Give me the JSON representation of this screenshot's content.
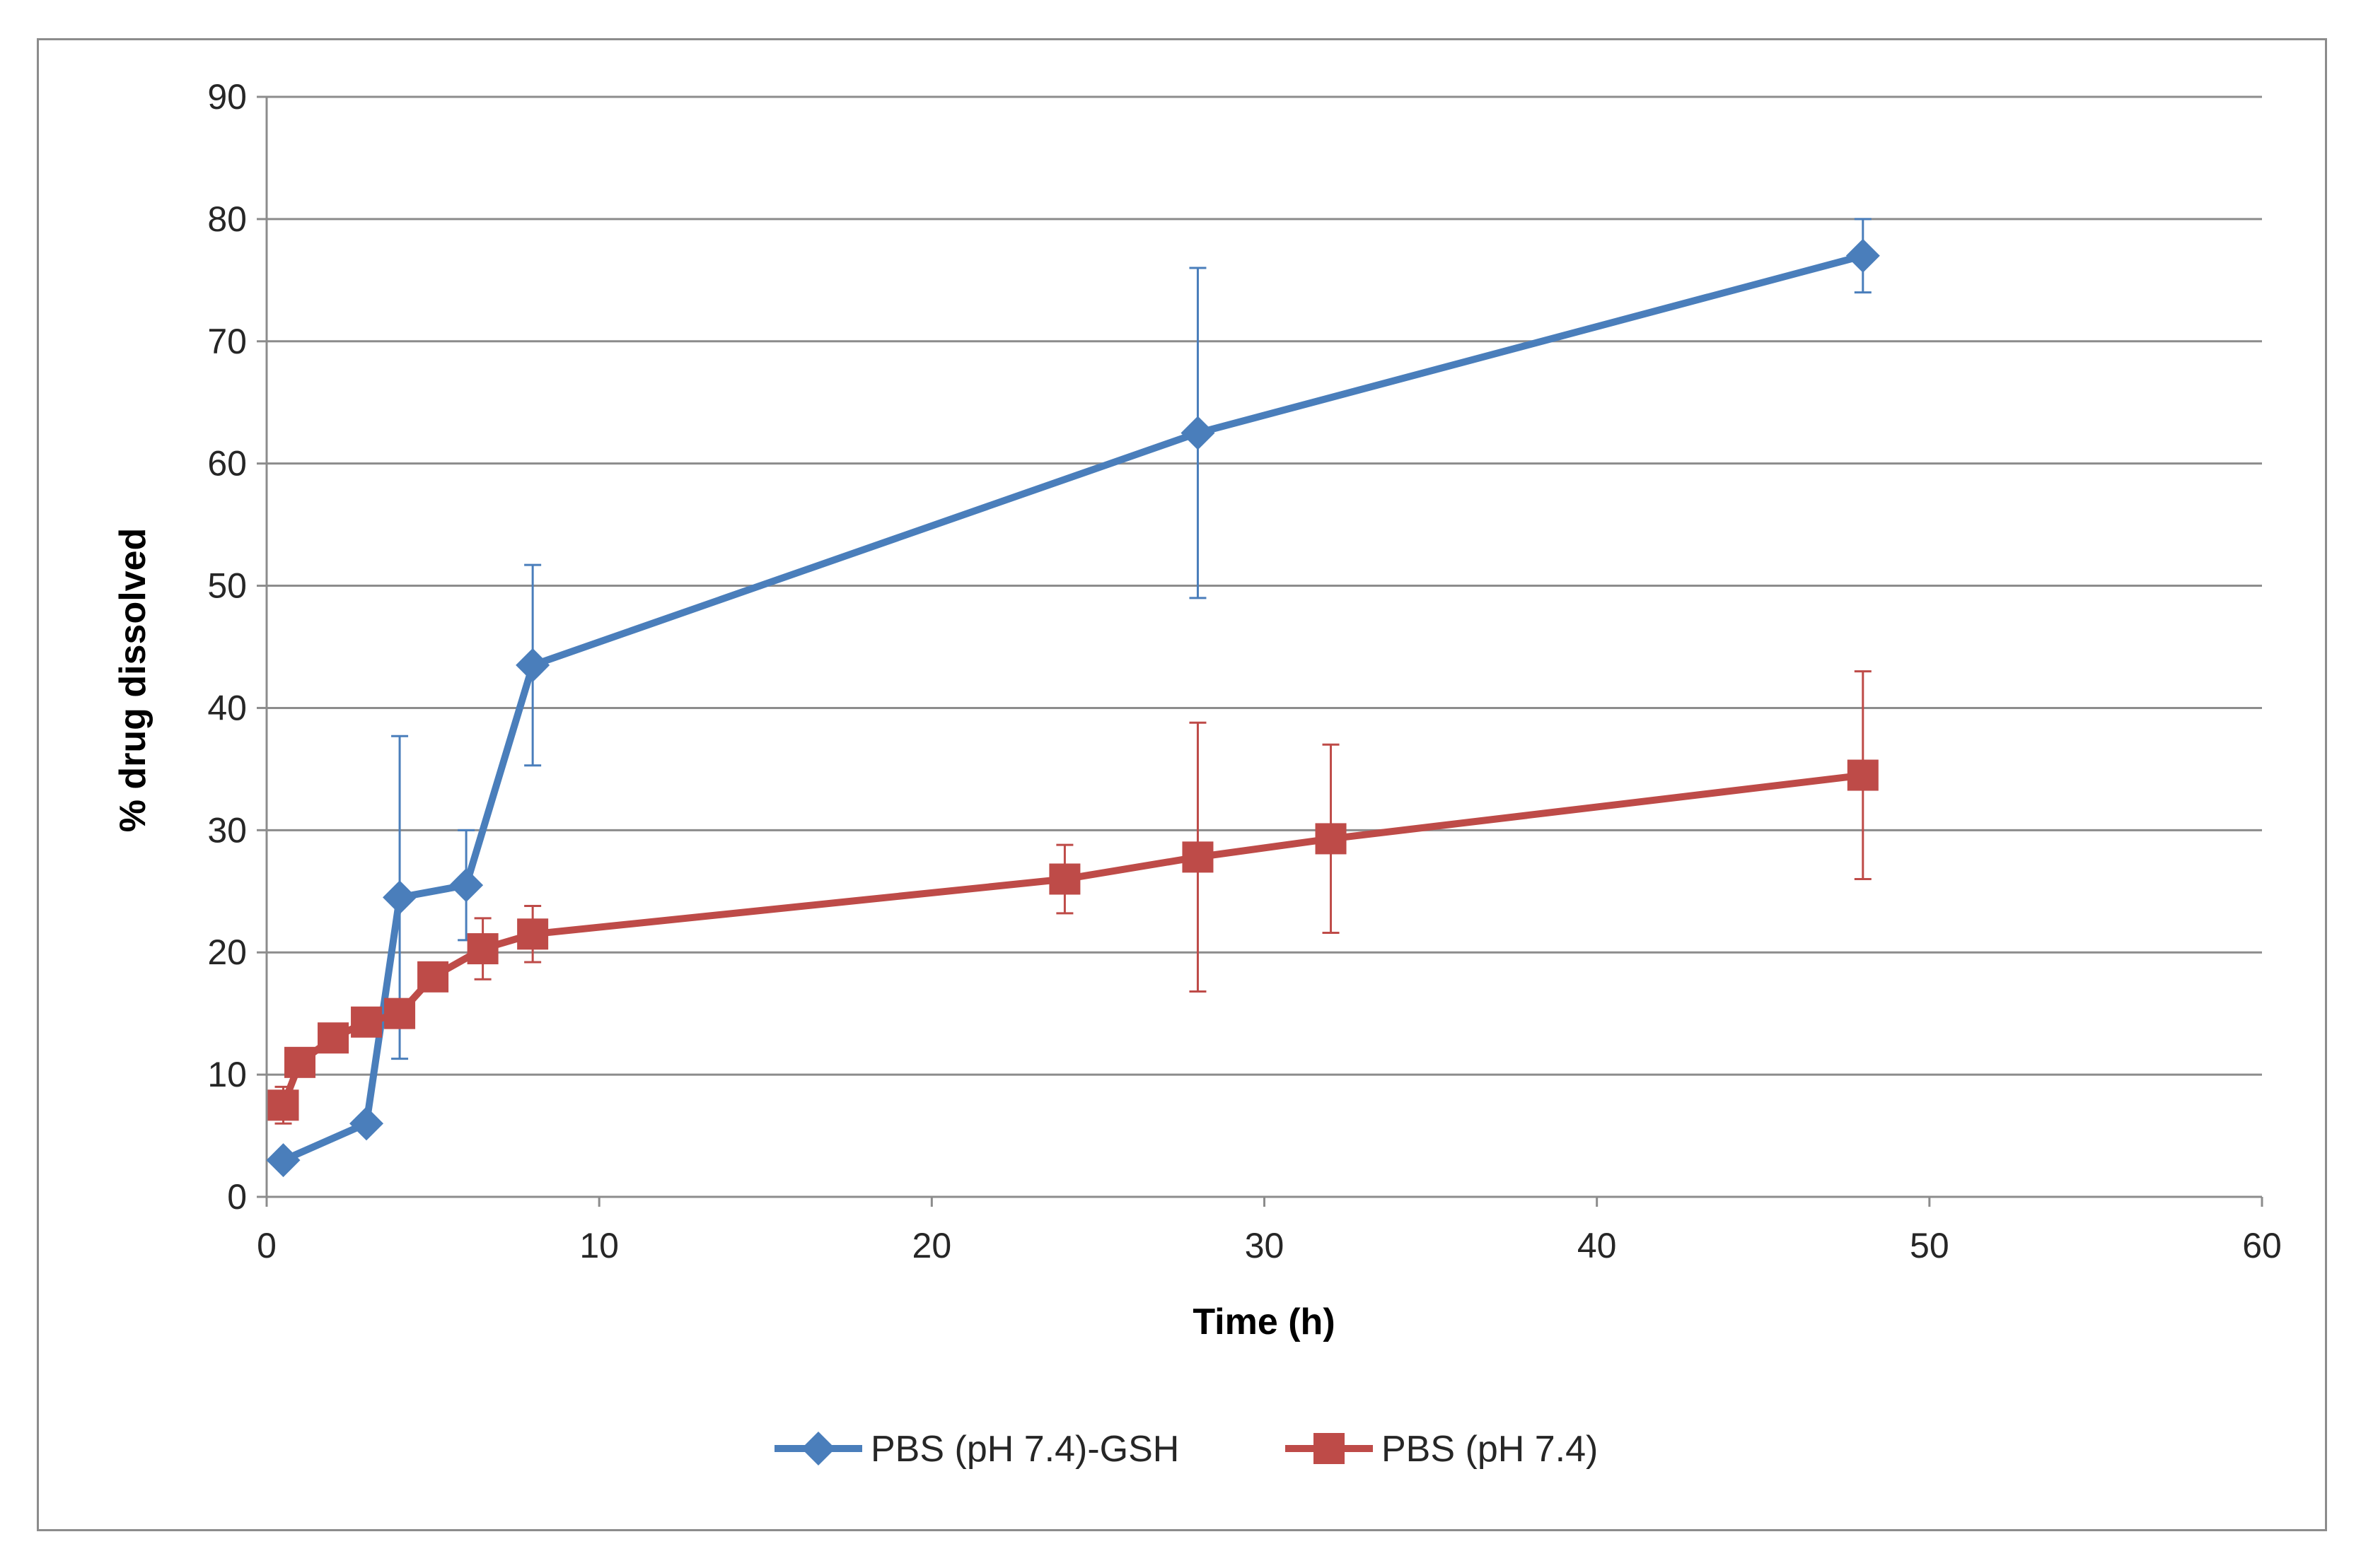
{
  "chart_data": {
    "type": "line",
    "title": "",
    "xlabel": "Time (h)",
    "ylabel": "% drug dissolved",
    "xlim": [
      0,
      60
    ],
    "ylim": [
      0,
      90
    ],
    "x_ticks": [
      0,
      10,
      20,
      30,
      40,
      50,
      60
    ],
    "y_ticks": [
      0,
      10,
      20,
      30,
      40,
      50,
      60,
      70,
      80,
      90
    ],
    "grid": "horizontal",
    "legend_position": "bottom",
    "series": [
      {
        "name": "PBS (pH 7.4)-GSH",
        "color": "#4a7ebb",
        "marker": "diamond",
        "x": [
          0.5,
          3,
          4,
          6,
          8,
          28,
          48
        ],
        "y": [
          3,
          6,
          24.5,
          25.5,
          43.5,
          62.5,
          77
        ],
        "err": [
          0,
          0,
          13.2,
          4.5,
          8.2,
          13.5,
          3
        ]
      },
      {
        "name": "PBS (pH 7.4)",
        "color": "#be4b48",
        "marker": "square",
        "x": [
          0.5,
          1,
          2,
          3,
          4,
          5,
          6.5,
          8,
          24,
          28,
          32,
          48
        ],
        "y": [
          7.5,
          11,
          13,
          14.3,
          15,
          18,
          20.3,
          21.5,
          26,
          27.8,
          29.3,
          34.5
        ],
        "err": [
          1.5,
          0,
          0,
          0,
          0,
          0,
          2.5,
          2.3,
          2.8,
          11,
          7.7,
          8.5
        ]
      }
    ]
  }
}
